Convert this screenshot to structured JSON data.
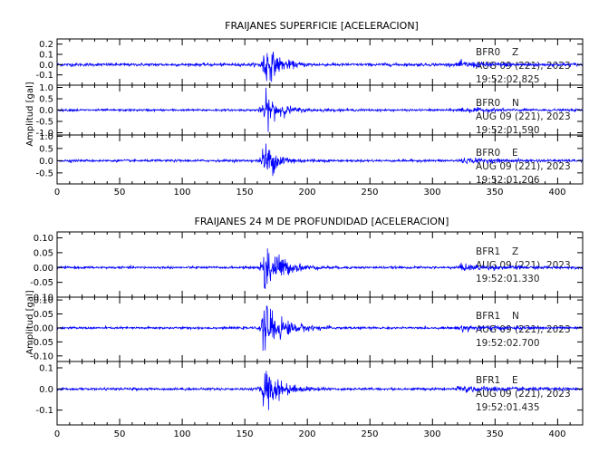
{
  "chart_data": [
    {
      "type": "line",
      "title": "FRAIJANES SUPERFICIE [ACELERACION]",
      "ylabel": "Amplitud [gal]",
      "xlim": [
        0,
        420
      ],
      "x_ticks": [
        "0",
        "50",
        "100",
        "150",
        "200",
        "250",
        "300",
        "350",
        "400"
      ],
      "line_color": "#0000ff",
      "panels": [
        {
          "station": "BFR0",
          "component": "Z",
          "date": "AUG 09 (221), 2023",
          "time": "19:52:02.825",
          "ylim": [
            -0.2,
            0.25
          ],
          "y_ticks": [
            "0.2",
            "0.1",
            "0.0",
            "-0.1"
          ],
          "noise": 0.015,
          "peak": 0.23,
          "onset": 163,
          "decay": 10,
          "late_onset": 318,
          "late_amp": 0.025
        },
        {
          "station": "BFR0",
          "component": "N",
          "date": "AUG 09 (221), 2023",
          "time": "19:52:01.590",
          "ylim": [
            -1.1,
            1.1
          ],
          "y_ticks": [
            "1.0",
            "0.5",
            "0.0",
            "-0.5",
            "-1.0"
          ],
          "noise": 0.05,
          "peak": 0.9,
          "onset": 163,
          "decay": 11,
          "late_onset": 318,
          "late_amp": 0.09
        },
        {
          "station": "BFR0",
          "component": "E",
          "date": "AUG 09 (221), 2023",
          "time": "19:52:01.206",
          "ylim": [
            -0.95,
            1.05
          ],
          "y_ticks": [
            "1.0",
            "0.5",
            "0.0",
            "-0.5"
          ],
          "noise": 0.05,
          "peak": 0.95,
          "onset": 163,
          "decay": 10,
          "late_onset": 318,
          "late_amp": 0.09
        }
      ]
    },
    {
      "type": "line",
      "title": "FRAIJANES 24 M DE PROFUNDIDAD [ACELERACION]",
      "ylabel": "Amplitud [gal]",
      "xlim": [
        0,
        420
      ],
      "x_ticks": [
        "0",
        "50",
        "100",
        "150",
        "200",
        "250",
        "300",
        "350",
        "400"
      ],
      "line_color": "#0000ff",
      "panels": [
        {
          "station": "BFR1",
          "component": "Z",
          "date": "AUG 09 (221), 2023",
          "time": "19:52:01.330",
          "ylim": [
            -0.1,
            0.12
          ],
          "y_ticks": [
            "0.10",
            "0.05",
            "0.00",
            "-0.05",
            "-0.10"
          ],
          "noise": 0.004,
          "peak": 0.11,
          "onset": 163,
          "decay": 12,
          "late_onset": 318,
          "late_amp": 0.01
        },
        {
          "station": "BFR1",
          "component": "N",
          "date": "AUG 09 (221), 2023",
          "time": "19:52:02.700",
          "ylim": [
            -0.12,
            0.11
          ],
          "y_ticks": [
            "0.10",
            "0.05",
            "0.00",
            "-0.05",
            "-0.10"
          ],
          "noise": 0.004,
          "peak": 0.1,
          "onset": 163,
          "decay": 14,
          "late_onset": 318,
          "late_amp": 0.01
        },
        {
          "station": "BFR1",
          "component": "E",
          "date": "AUG 09 (221), 2023",
          "time": "19:52:01.435",
          "ylim": [
            -0.17,
            0.13
          ],
          "y_ticks": [
            "0.1",
            "0.0",
            "-0.1"
          ],
          "noise": 0.006,
          "peak": 0.12,
          "onset": 163,
          "decay": 12,
          "late_onset": 318,
          "late_amp": 0.015
        }
      ]
    }
  ]
}
